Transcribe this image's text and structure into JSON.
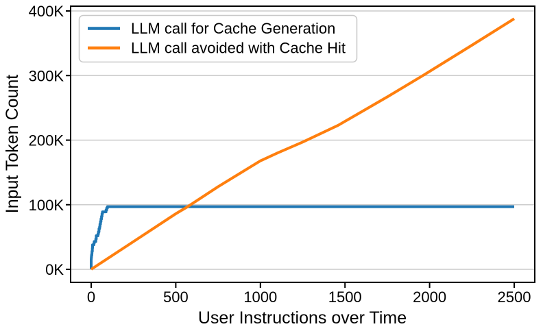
{
  "chart_data": {
    "type": "line",
    "title": "",
    "xlabel": "User Instructions over Time",
    "ylabel": "Input Token Count",
    "x_ticks": [
      {
        "value": 0,
        "label": "0"
      },
      {
        "value": 500,
        "label": "500"
      },
      {
        "value": 1000,
        "label": "1000"
      },
      {
        "value": 1500,
        "label": "1500"
      },
      {
        "value": 2000,
        "label": "2000"
      },
      {
        "value": 2500,
        "label": "2500"
      }
    ],
    "y_ticks": [
      {
        "value": 0,
        "label": "0K"
      },
      {
        "value": 100,
        "label": "100K"
      },
      {
        "value": 200,
        "label": "200K"
      },
      {
        "value": 300,
        "label": "300K"
      },
      {
        "value": 400,
        "label": "400K"
      }
    ],
    "xlim": [
      -120,
      2620
    ],
    "ylim_tokens_k": [
      -20,
      407
    ],
    "grid": "horizontal-only",
    "grid_color": "#cccccc",
    "legend_position": "upper-left",
    "series": [
      {
        "name": "LLM call for Cache Generation",
        "color": "#1f77b4",
        "points": [
          [
            0,
            0
          ],
          [
            0,
            16
          ],
          [
            1,
            16
          ],
          [
            1,
            19
          ],
          [
            2,
            19
          ],
          [
            2,
            22
          ],
          [
            4,
            22
          ],
          [
            4,
            25
          ],
          [
            5,
            25
          ],
          [
            5,
            28
          ],
          [
            7,
            28
          ],
          [
            7,
            33
          ],
          [
            8,
            33
          ],
          [
            8,
            38
          ],
          [
            16,
            38
          ],
          [
            16,
            40
          ],
          [
            18,
            40
          ],
          [
            18,
            43
          ],
          [
            27,
            43
          ],
          [
            27,
            47
          ],
          [
            30,
            47
          ],
          [
            30,
            52
          ],
          [
            40,
            52
          ],
          [
            40,
            55
          ],
          [
            43,
            55
          ],
          [
            43,
            58
          ],
          [
            46,
            58
          ],
          [
            46,
            63
          ],
          [
            50,
            63
          ],
          [
            50,
            66
          ],
          [
            52,
            66
          ],
          [
            52,
            70
          ],
          [
            55,
            70
          ],
          [
            55,
            74
          ],
          [
            58,
            74
          ],
          [
            58,
            78
          ],
          [
            61,
            78
          ],
          [
            61,
            82
          ],
          [
            64,
            82
          ],
          [
            64,
            86
          ],
          [
            67,
            86
          ],
          [
            67,
            89
          ],
          [
            88,
            89
          ],
          [
            88,
            92
          ],
          [
            92,
            92
          ],
          [
            92,
            95
          ],
          [
            96,
            95
          ],
          [
            96,
            97
          ],
          [
            104,
            97
          ],
          [
            2500,
            97
          ]
        ]
      },
      {
        "name": "LLM call avoided with Cache Hit",
        "color": "#ff7f0e",
        "points": [
          [
            0,
            0
          ],
          [
            250,
            43
          ],
          [
            500,
            86
          ],
          [
            570,
            97
          ],
          [
            750,
            128
          ],
          [
            1000,
            168
          ],
          [
            1100,
            180
          ],
          [
            1250,
            197
          ],
          [
            1460,
            223
          ],
          [
            1750,
            267
          ],
          [
            1960,
            300
          ],
          [
            2250,
            347
          ],
          [
            2500,
            388
          ]
        ]
      }
    ]
  }
}
